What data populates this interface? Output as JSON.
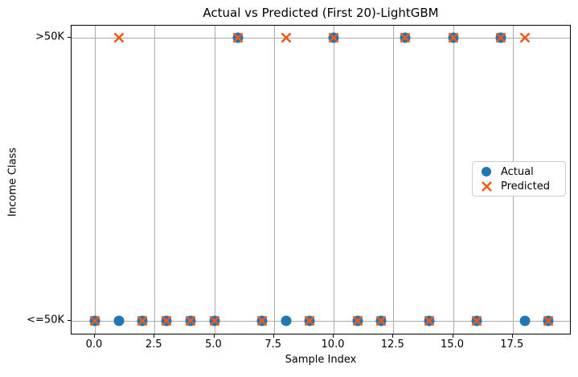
{
  "chart_data": {
    "type": "scatter",
    "title": "Actual vs Predicted (First 20)-LightGBM",
    "xlabel": "Sample Index",
    "ylabel": "Income Class",
    "x": [
      0,
      1,
      2,
      3,
      4,
      5,
      6,
      7,
      8,
      9,
      10,
      11,
      12,
      13,
      14,
      15,
      16,
      17,
      18,
      19
    ],
    "x_tick_labels": [
      "0.0",
      "2.5",
      "5.0",
      "7.5",
      "10.0",
      "12.5",
      "15.0",
      "17.5"
    ],
    "x_tick_values": [
      0,
      2.5,
      5,
      7.5,
      10,
      12.5,
      15,
      17.5
    ],
    "y_categories": [
      "<=50K",
      ">50K"
    ],
    "y_tick_labels": [
      ">50K",
      "<=50K"
    ],
    "series": [
      {
        "name": "Actual",
        "marker": "circle",
        "color": "#1f77b4",
        "values": [
          "<=50K",
          "<=50K",
          "<=50K",
          "<=50K",
          "<=50K",
          "<=50K",
          ">50K",
          "<=50K",
          "<=50K",
          "<=50K",
          ">50K",
          "<=50K",
          "<=50K",
          ">50K",
          "<=50K",
          ">50K",
          "<=50K",
          ">50K",
          "<=50K",
          "<=50K"
        ]
      },
      {
        "name": "Predicted",
        "marker": "x",
        "color": "#ee5a1a",
        "values": [
          "<=50K",
          ">50K",
          "<=50K",
          "<=50K",
          "<=50K",
          "<=50K",
          ">50K",
          "<=50K",
          ">50K",
          "<=50K",
          ">50K",
          "<=50K",
          "<=50K",
          ">50K",
          "<=50K",
          ">50K",
          "<=50K",
          ">50K",
          ">50K",
          "<=50K"
        ]
      }
    ],
    "grid": true,
    "grid_color": "#ababab",
    "legend": {
      "labels": [
        "Actual",
        "Predicted"
      ],
      "position": "center-right"
    }
  }
}
